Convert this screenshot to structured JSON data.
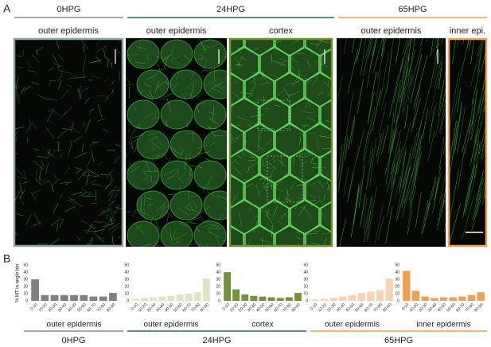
{
  "panel_a": {
    "label": "A",
    "groups": [
      {
        "title": "0HPG",
        "color": "#8c8c8c"
      },
      {
        "title": "24HPG",
        "color": "#2f6b55"
      },
      {
        "title": "65HPG",
        "color": "#f0a050"
      }
    ],
    "images": [
      {
        "label": "outer epidermis",
        "border": "#8fa0a0"
      },
      {
        "label": "outer epidermis",
        "border": null
      },
      {
        "label": "cortex",
        "border": "#6f8f35"
      },
      {
        "label": "outer epidermis",
        "border": null
      },
      {
        "label": "inner epi.",
        "border": "#f0a050"
      }
    ]
  },
  "panel_b": {
    "label": "B",
    "y_axis_label": "% MT in angle bin",
    "groups": [
      {
        "title": "0HPG",
        "color": "#8c8c8c"
      },
      {
        "title": "24HPG",
        "color": "#2f6b55"
      },
      {
        "title": "65HPG",
        "color": "#f0a050"
      }
    ],
    "charts": [
      {
        "type": "bar",
        "title": "outer epidermis",
        "color": "#808080",
        "categories": [
          "0-10",
          "10-20",
          "20-30",
          "30-40",
          "40-50",
          "50-60",
          "60-70",
          "70-80",
          "80-90"
        ],
        "values": [
          30,
          8,
          8,
          8,
          8,
          8,
          6,
          6,
          11
        ],
        "ylim": [
          0,
          50
        ],
        "yticks": [
          0,
          10,
          20,
          30,
          40,
          50
        ]
      },
      {
        "type": "bar",
        "title": "outer epidermis",
        "color": "#dde6c2",
        "categories": [
          "0-10",
          "10-20",
          "20-30",
          "30-40",
          "40-50",
          "50-60",
          "60-70",
          "70-80",
          "80-90"
        ],
        "values": [
          3,
          4,
          5,
          6,
          7,
          9,
          10,
          12,
          31
        ],
        "ylim": [
          0,
          50
        ],
        "yticks": [
          0,
          10,
          20,
          30,
          40,
          50
        ]
      },
      {
        "type": "bar",
        "title": "cortex",
        "color": "#74913a",
        "categories": [
          "0-10",
          "10-20",
          "20-30",
          "30-40",
          "40-50",
          "50-60",
          "60-70",
          "70-80",
          "80-90"
        ],
        "values": [
          40,
          16,
          9,
          7,
          6,
          5,
          4,
          5,
          11
        ],
        "ylim": [
          0,
          50
        ],
        "yticks": [
          0,
          10,
          20,
          30,
          40,
          50
        ]
      },
      {
        "type": "bar",
        "title": "outer epidermis",
        "color": "#f8d4b4",
        "categories": [
          "0-10",
          "10-20",
          "20-30",
          "30-40",
          "40-50",
          "50-60",
          "60-70",
          "70-80",
          "80-90"
        ],
        "values": [
          2,
          3,
          4,
          6,
          8,
          11,
          13,
          15,
          31
        ],
        "ylim": [
          0,
          50
        ],
        "yticks": [
          0,
          10,
          20,
          30,
          40,
          50
        ]
      },
      {
        "type": "bar",
        "title": "inner epidermis",
        "color": "#f0a050",
        "categories": [
          "0-10",
          "10-20",
          "20-30",
          "30-40",
          "40-50",
          "50-60",
          "60-70",
          "70-80",
          "80-90"
        ],
        "values": [
          42,
          14,
          6,
          4,
          5,
          5,
          6,
          8,
          12
        ],
        "ylim": [
          0,
          50
        ],
        "yticks": [
          0,
          10,
          20,
          30,
          40,
          50
        ]
      }
    ]
  }
}
